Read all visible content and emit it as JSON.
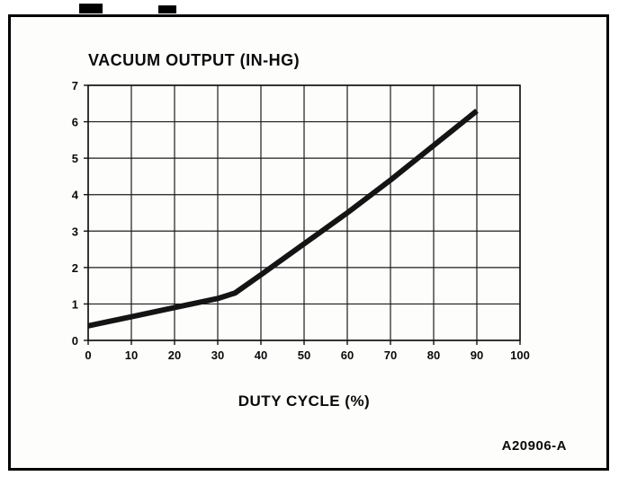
{
  "chart_data": {
    "type": "line",
    "title": "VACUUM OUTPUT (IN-HG)",
    "xlabel": "DUTY CYCLE (%)",
    "ylabel": "",
    "x": [
      0,
      10,
      20,
      30,
      34,
      40,
      50,
      60,
      70,
      80,
      90
    ],
    "y": [
      0.4,
      0.65,
      0.9,
      1.15,
      1.3,
      1.8,
      2.65,
      3.5,
      4.4,
      5.35,
      6.3
    ],
    "xlim": [
      0,
      100
    ],
    "ylim": [
      0,
      7
    ],
    "x_ticks": [
      0,
      10,
      20,
      30,
      40,
      50,
      60,
      70,
      80,
      90,
      100
    ],
    "y_ticks": [
      0,
      1,
      2,
      3,
      4,
      5,
      6,
      7
    ],
    "grid": true,
    "legend": "none",
    "line_color": "#141414",
    "annotation": "A20906-A"
  }
}
